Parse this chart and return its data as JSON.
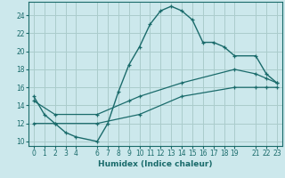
{
  "xlabel": "Humidex (Indice chaleur)",
  "bg_color": "#cce8ec",
  "grid_color": "#aacccc",
  "line_color": "#1a6b6b",
  "xlim": [
    -0.5,
    23.5
  ],
  "ylim": [
    9.5,
    25.5
  ],
  "xticks": [
    0,
    1,
    2,
    3,
    4,
    6,
    7,
    8,
    9,
    10,
    11,
    12,
    13,
    14,
    15,
    16,
    17,
    18,
    19,
    21,
    22,
    23
  ],
  "yticks": [
    10,
    12,
    14,
    16,
    18,
    20,
    22,
    24
  ],
  "line1_x": [
    0,
    1,
    2,
    3,
    4,
    6,
    7,
    8,
    9,
    10,
    11,
    12,
    13,
    14,
    15,
    16,
    17,
    18,
    19,
    21,
    22,
    23
  ],
  "line1_y": [
    15,
    13,
    12,
    11,
    10.5,
    10,
    12,
    15.5,
    18.5,
    20.5,
    23,
    24.5,
    25,
    24.5,
    23.5,
    21,
    21,
    20.5,
    19.5,
    19.5,
    17.5,
    16.5
  ],
  "line2_x": [
    0,
    2,
    6,
    10,
    14,
    19,
    21,
    22,
    23
  ],
  "line2_y": [
    12,
    12,
    12,
    13,
    15,
    16,
    16,
    16,
    16
  ],
  "line3_x": [
    0,
    2,
    6,
    9,
    10,
    14,
    19,
    21,
    22,
    23
  ],
  "line3_y": [
    14.5,
    13,
    13,
    14.5,
    15,
    16.5,
    18,
    17.5,
    17,
    16.5
  ]
}
